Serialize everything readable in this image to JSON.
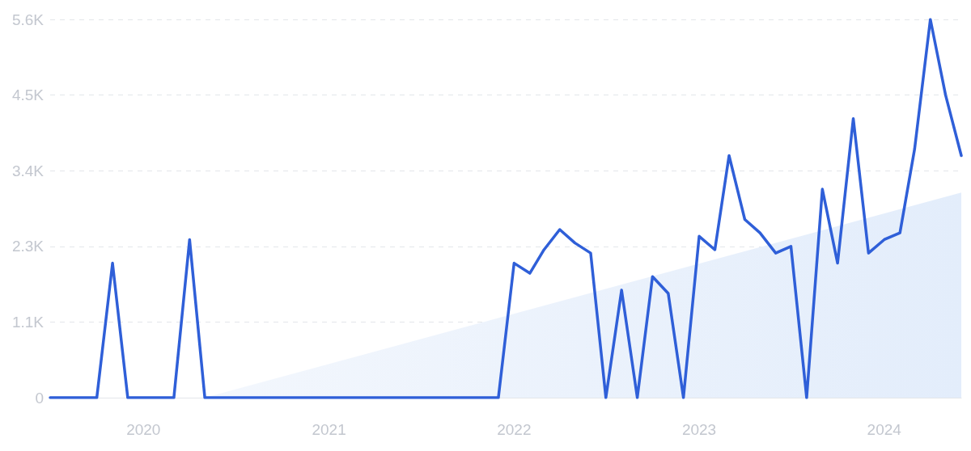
{
  "chart_data": {
    "type": "line",
    "x": [
      "2019-07",
      "2019-08",
      "2019-09",
      "2019-10",
      "2019-11",
      "2019-12",
      "2020-01",
      "2020-02",
      "2020-03",
      "2020-04",
      "2020-05",
      "2020-06",
      "2020-07",
      "2020-08",
      "2020-09",
      "2020-10",
      "2020-11",
      "2020-12",
      "2021-01",
      "2021-02",
      "2021-03",
      "2021-04",
      "2021-05",
      "2021-06",
      "2021-07",
      "2021-08",
      "2021-09",
      "2021-10",
      "2021-11",
      "2021-12",
      "2022-01",
      "2022-02",
      "2022-03",
      "2022-04",
      "2022-05",
      "2022-06",
      "2022-07",
      "2022-08",
      "2022-09",
      "2022-10",
      "2022-11",
      "2022-12",
      "2023-01",
      "2023-02",
      "2023-03",
      "2023-04",
      "2023-05",
      "2023-06",
      "2023-07",
      "2023-08",
      "2023-09",
      "2023-10",
      "2023-11",
      "2023-12",
      "2024-01",
      "2024-02",
      "2024-03",
      "2024-04",
      "2024-05",
      "2024-06"
    ],
    "series": [
      {
        "type": "area",
        "color": "#e3edfb",
        "x": [
          "2020-05",
          "2024-06"
        ],
        "values": [
          0,
          3050
        ]
      },
      {
        "color": "#2f5fd8",
        "values": [
          0,
          0,
          0,
          0,
          2000,
          0,
          0,
          0,
          0,
          2350,
          0,
          0,
          0,
          0,
          0,
          0,
          0,
          0,
          0,
          0,
          0,
          0,
          0,
          0,
          0,
          0,
          0,
          0,
          0,
          0,
          2000,
          1850,
          2200,
          2500,
          2300,
          2150,
          0,
          1600,
          0,
          1800,
          1550,
          0,
          2400,
          2200,
          3600,
          2650,
          2450,
          2150,
          2250,
          0,
          3100,
          2000,
          4150,
          2150,
          2350,
          2450,
          3700,
          5625,
          4500,
          3600
        ]
      }
    ],
    "xlim": [
      "2019-07",
      "2024-06"
    ],
    "xticks": [
      "2020",
      "2021",
      "2022",
      "2023",
      "2024"
    ],
    "ylim": [
      0,
      5625
    ],
    "yticks": [
      {
        "value": 0,
        "label": "0"
      },
      {
        "value": 1125,
        "label": "1.1K"
      },
      {
        "value": 2250,
        "label": "2.3K"
      },
      {
        "value": 3375,
        "label": "3.4K"
      },
      {
        "value": 4500,
        "label": "4.5K"
      },
      {
        "value": 5625,
        "label": "5.6K"
      }
    ],
    "grid": "y",
    "marker": "none",
    "line_style": "solid"
  }
}
